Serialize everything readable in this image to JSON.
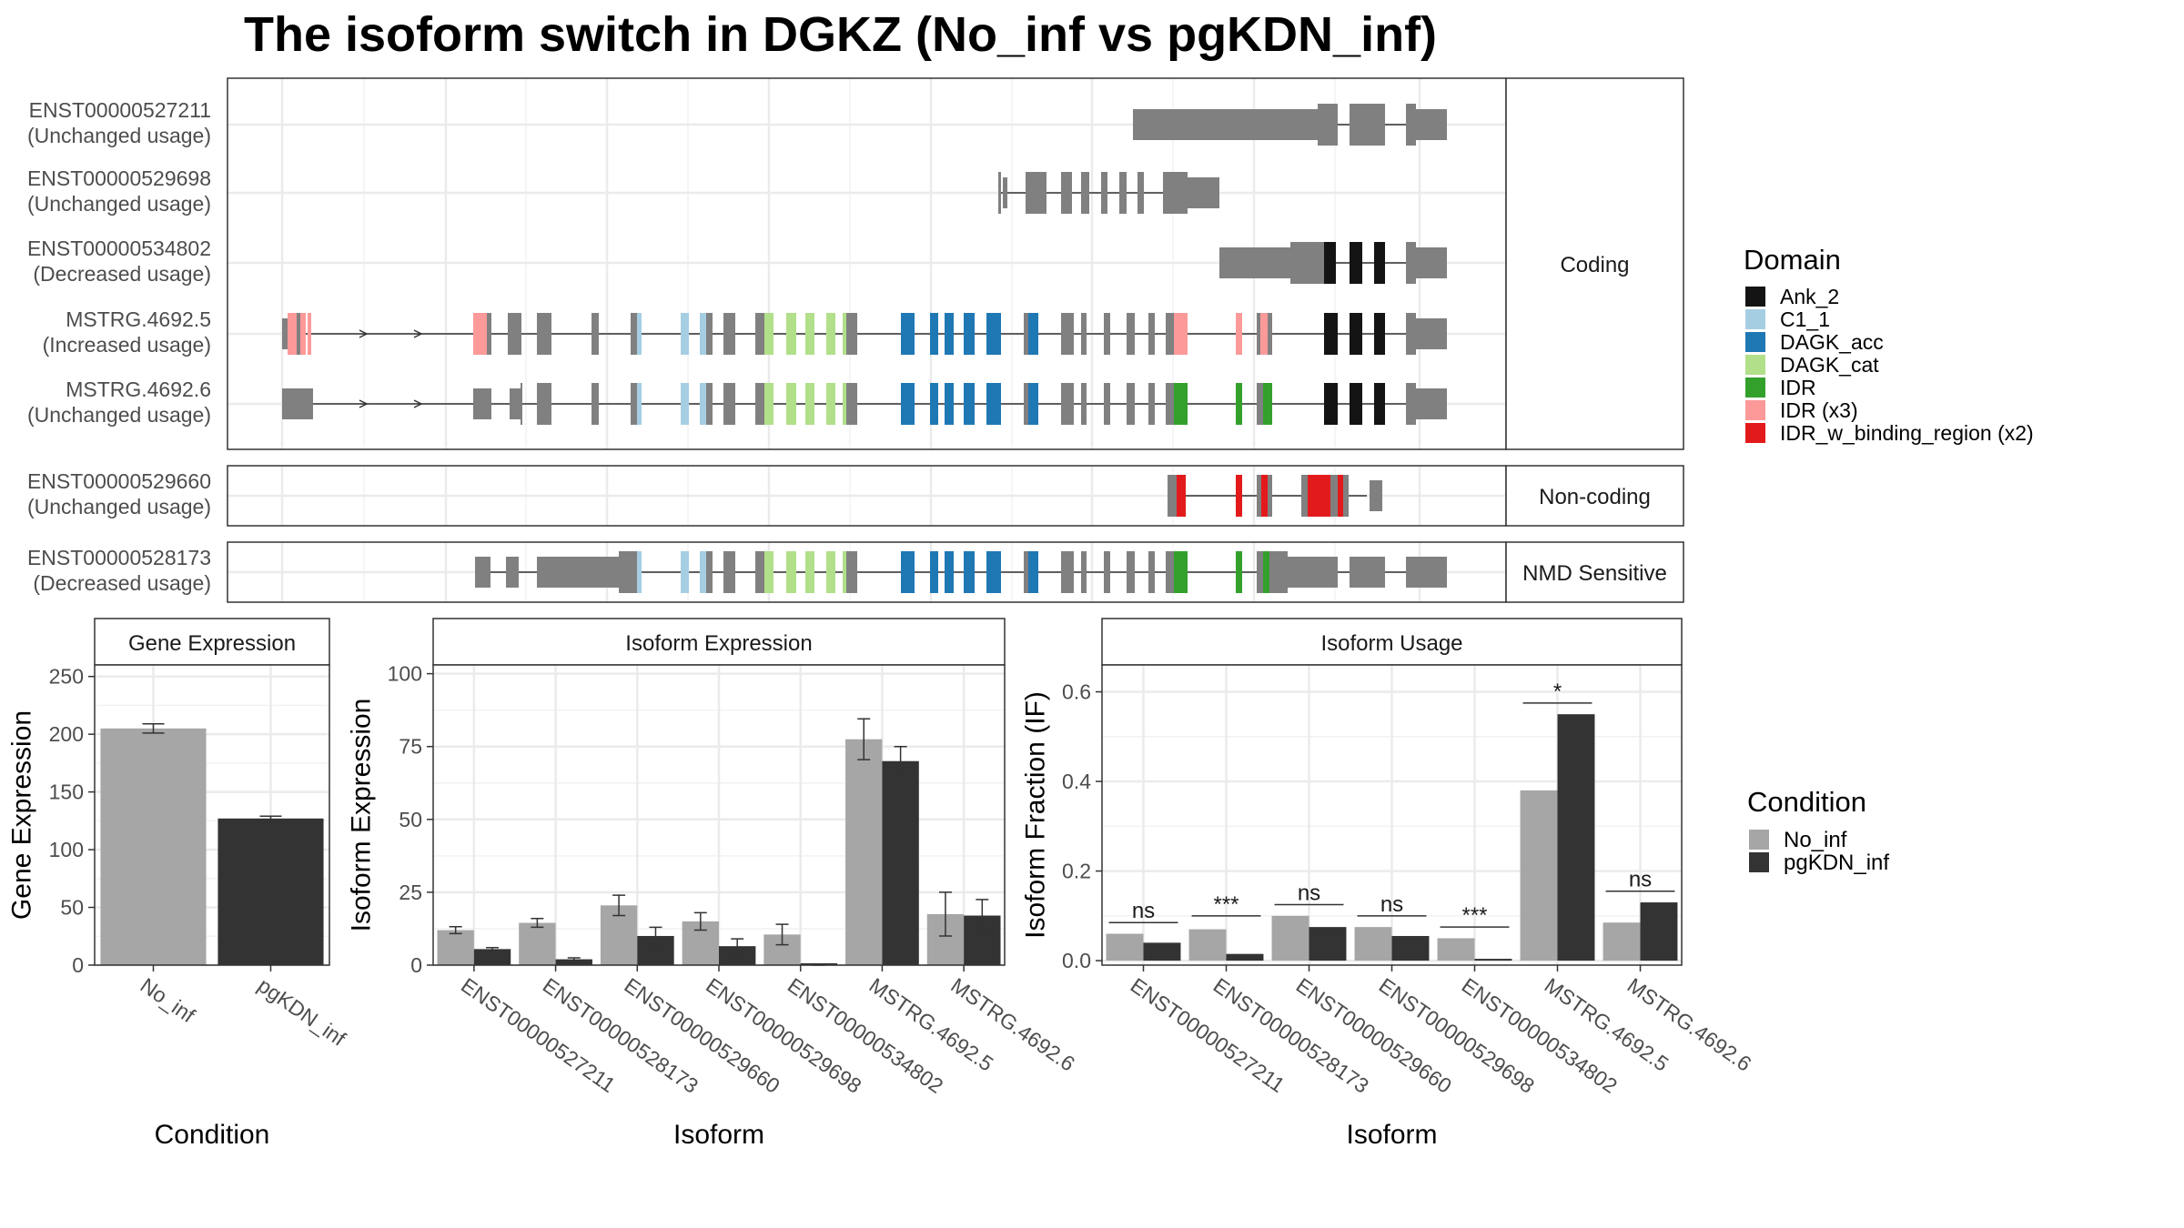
{
  "title": "The isoform switch in DGKZ (No_inf vs pgKDN_inf)",
  "colors": {
    "Ank_2": "#141414",
    "C1_1": "#a6cee3",
    "DAGK_acc": "#1f78b4",
    "DAGK_cat": "#b2df8a",
    "IDR": "#33a02c",
    "IDR_x3": "#fb9a99",
    "IDR_w_binding_region": "#e31a1c",
    "exon": "#808080",
    "No_inf": "#a6a6a6",
    "pgKDN_inf": "#333333"
  },
  "structure": {
    "strips": [
      "Coding",
      "Non-coding",
      "NMD Sensitive"
    ],
    "transcripts": [
      {
        "id": "ENST00000527211",
        "usage": "(Unchanged usage)"
      },
      {
        "id": "ENST00000529698",
        "usage": "(Unchanged usage)"
      },
      {
        "id": "ENST00000534802",
        "usage": "(Decreased usage)"
      },
      {
        "id": "MSTRG.4692.5",
        "usage": "(Increased usage)"
      },
      {
        "id": "MSTRG.4692.6",
        "usage": "(Unchanged usage)"
      },
      {
        "id": "ENST00000529660",
        "usage": "(Unchanged usage)"
      },
      {
        "id": "ENST00000528173",
        "usage": "(Decreased usage)"
      }
    ]
  },
  "legend_domain": {
    "title": "Domain",
    "items": [
      {
        "label": "Ank_2",
        "key": "Ank_2"
      },
      {
        "label": "C1_1",
        "key": "C1_1"
      },
      {
        "label": "DAGK_acc",
        "key": "DAGK_acc"
      },
      {
        "label": "DAGK_cat",
        "key": "DAGK_cat"
      },
      {
        "label": "IDR",
        "key": "IDR"
      },
      {
        "label": "IDR (x3)",
        "key": "IDR_x3"
      },
      {
        "label": "IDR_w_binding_region (x2)",
        "key": "IDR_w_binding_region"
      }
    ]
  },
  "legend_condition": {
    "title": "Condition",
    "items": [
      {
        "label": "No_inf",
        "key": "No_inf"
      },
      {
        "label": "pgKDN_inf",
        "key": "pgKDN_inf"
      }
    ]
  },
  "chart_data": [
    {
      "type": "bar",
      "title": "Gene Expression",
      "xlabel": "Condition",
      "ylabel": "Gene Expression",
      "ylim": [
        0,
        260
      ],
      "yticks": [
        0,
        50,
        100,
        150,
        200,
        250
      ],
      "categories": [
        "No_inf",
        "pgKDN_inf"
      ],
      "values": [
        205,
        127
      ],
      "errors": [
        4,
        2
      ]
    },
    {
      "type": "bar",
      "title": "Isoform Expression",
      "xlabel": "Isoform",
      "ylabel": "Isoform Expression",
      "ylim": [
        0,
        103
      ],
      "yticks": [
        0,
        25,
        50,
        75,
        100
      ],
      "categories": [
        "ENST00000527211",
        "ENST00000528173",
        "ENST00000529660",
        "ENST00000529698",
        "ENST00000534802",
        "MSTRG.4692.5",
        "MSTRG.4692.6"
      ],
      "series": [
        {
          "name": "No_inf",
          "values": [
            12,
            14.5,
            20.5,
            15,
            10.5,
            77.5,
            17.5
          ],
          "errors": [
            1.2,
            1.5,
            3.5,
            3,
            3.5,
            7,
            7.5
          ]
        },
        {
          "name": "pgKDN_inf",
          "values": [
            5.5,
            2,
            10,
            6.5,
            0,
            70,
            17
          ],
          "errors": [
            0.5,
            0.5,
            3,
            2.5,
            0.2,
            5,
            5.5
          ]
        }
      ]
    },
    {
      "type": "bar",
      "title": "Isoform Usage",
      "xlabel": "Isoform",
      "ylabel": "Isoform Fraction (IF)",
      "ylim": [
        -0.01,
        0.66
      ],
      "yticks": [
        0.0,
        0.2,
        0.4,
        0.6
      ],
      "categories": [
        "ENST00000527211",
        "ENST00000528173",
        "ENST00000529660",
        "ENST00000529698",
        "ENST00000534802",
        "MSTRG.4692.5",
        "MSTRG.4692.6"
      ],
      "series": [
        {
          "name": "No_inf",
          "values": [
            0.06,
            0.07,
            0.1,
            0.075,
            0.05,
            0.38,
            0.085
          ]
        },
        {
          "name": "pgKDN_inf",
          "values": [
            0.04,
            0.015,
            0.075,
            0.055,
            0,
            0.55,
            0.13
          ]
        }
      ],
      "significance": [
        "ns",
        "***",
        "ns",
        "ns",
        "***",
        "*",
        "ns"
      ],
      "sig_y": [
        0.085,
        0.1,
        0.125,
        0.1,
        0.075,
        0.575,
        0.155
      ]
    }
  ]
}
